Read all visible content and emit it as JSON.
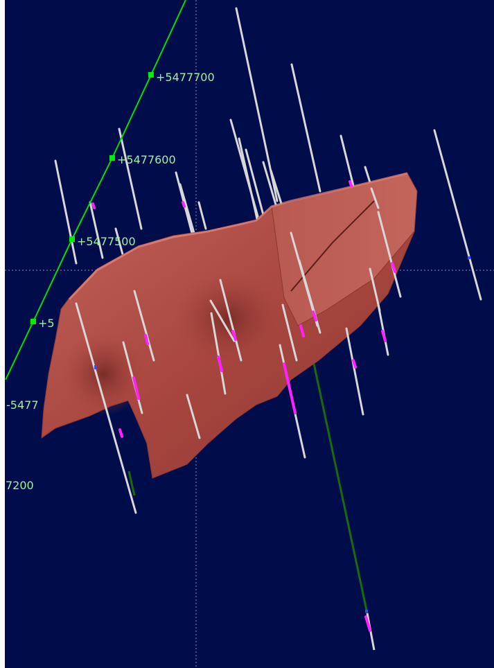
{
  "viewer": {
    "background_color": "#000d4a",
    "surface_color": "#b8524a",
    "drillhole_color": "#d8d8d8",
    "assay_color": "#ff22ff",
    "grid_line_color": "#00e000",
    "grid_labels": [
      {
        "text": "+5477700"
      },
      {
        "text": "+5477600"
      },
      {
        "text": "+5477500"
      },
      {
        "text": "+5"
      },
      {
        "text": "-5477"
      },
      {
        "text": "7200"
      }
    ]
  }
}
